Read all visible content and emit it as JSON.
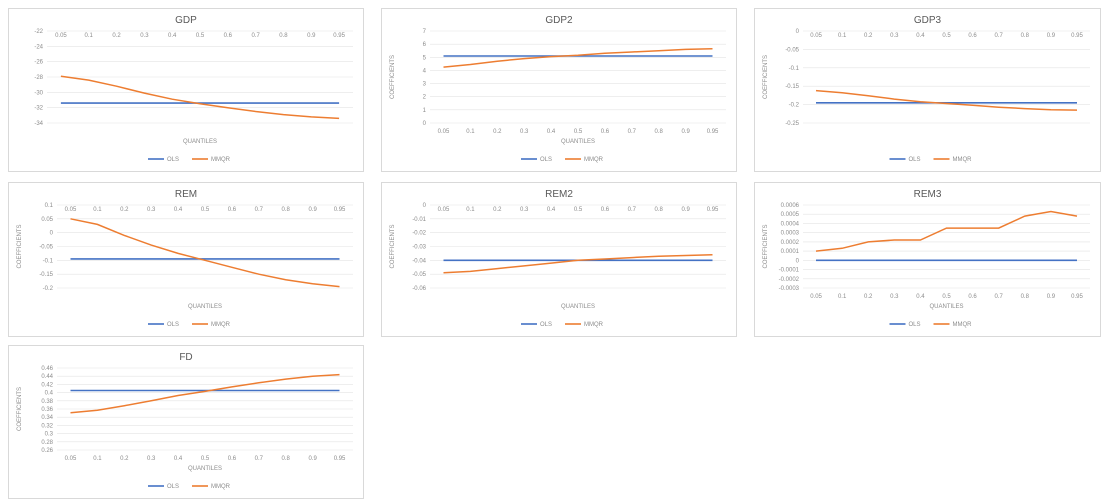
{
  "colors": {
    "ols": "#4472c4",
    "mmqr": "#ed7d31",
    "grid": "#e3e3e3"
  },
  "chart_data": [
    {
      "type": "line",
      "title": "GDP",
      "xlabel": "QUANTILES",
      "ylabel": "",
      "categories": [
        "0.05",
        "0.1",
        "0.2",
        "0.3",
        "0.4",
        "0.5",
        "0.6",
        "0.7",
        "0.8",
        "0.9",
        "0.95"
      ],
      "x_axis_position": "top",
      "y_ticks": [
        "-22",
        "-24",
        "-26",
        "-28",
        "-30",
        "-32",
        "-34"
      ],
      "ylim": [
        -34,
        -22
      ],
      "legend": [
        "OLS",
        "MMQR"
      ],
      "legend_position": "bottom",
      "series": [
        {
          "name": "OLS",
          "values": [
            -31.4,
            -31.4,
            -31.4,
            -31.4,
            -31.4,
            -31.4,
            -31.4,
            -31.4,
            -31.4,
            -31.4,
            -31.4
          ]
        },
        {
          "name": "MMQR",
          "values": [
            -27.9,
            -28.4,
            -29.2,
            -30.1,
            -30.9,
            -31.5,
            -32.0,
            -32.5,
            -32.9,
            -33.2,
            -33.4
          ]
        }
      ]
    },
    {
      "type": "line",
      "title": "GDP2",
      "xlabel": "QUANTILES",
      "ylabel": "COEFFICIENTS",
      "categories": [
        "0.05",
        "0.1",
        "0.2",
        "0.3",
        "0.4",
        "0.5",
        "0.6",
        "0.7",
        "0.8",
        "0.9",
        "0.95"
      ],
      "x_axis_position": "bottom",
      "y_ticks": [
        "7",
        "6",
        "5",
        "4",
        "3",
        "2",
        "1",
        "0"
      ],
      "ylim": [
        0,
        7
      ],
      "legend": [
        "OLS",
        "MMQR"
      ],
      "legend_position": "bottom",
      "series": [
        {
          "name": "OLS",
          "values": [
            5.1,
            5.1,
            5.1,
            5.1,
            5.1,
            5.1,
            5.1,
            5.1,
            5.1,
            5.1,
            5.1
          ]
        },
        {
          "name": "MMQR",
          "values": [
            4.25,
            4.45,
            4.7,
            4.9,
            5.05,
            5.15,
            5.3,
            5.4,
            5.5,
            5.6,
            5.65
          ]
        }
      ]
    },
    {
      "type": "line",
      "title": "GDP3",
      "xlabel": "",
      "ylabel": "COEFFICIENTS",
      "categories": [
        "0.05",
        "0.1",
        "0.2",
        "0.3",
        "0.4",
        "0.5",
        "0.6",
        "0.7",
        "0.8",
        "0.9",
        "0.95"
      ],
      "x_axis_position": "top",
      "y_ticks": [
        "0",
        "-0.05",
        "-0.1",
        "-0.15",
        "-0.2",
        "-0.25"
      ],
      "ylim": [
        -0.25,
        0
      ],
      "legend": [
        "OLS",
        "MMQR"
      ],
      "legend_position": "bottom",
      "series": [
        {
          "name": "OLS",
          "values": [
            -0.195,
            -0.195,
            -0.195,
            -0.195,
            -0.195,
            -0.195,
            -0.195,
            -0.195,
            -0.195,
            -0.195,
            -0.195
          ]
        },
        {
          "name": "MMQR",
          "values": [
            -0.162,
            -0.168,
            -0.176,
            -0.185,
            -0.192,
            -0.197,
            -0.202,
            -0.207,
            -0.211,
            -0.214,
            -0.215
          ]
        }
      ]
    },
    {
      "type": "line",
      "title": "REM",
      "xlabel": "QUANTILES",
      "ylabel": "COEFFICIENTS",
      "categories": [
        "0.05",
        "0.1",
        "0.2",
        "0.3",
        "0.4",
        "0.5",
        "0.6",
        "0.7",
        "0.8",
        "0.9",
        "0.95"
      ],
      "x_axis_position": "top",
      "y_ticks": [
        "0.1",
        "0.05",
        "0",
        "-0.05",
        "-0.1",
        "-0.15",
        "-0.2"
      ],
      "ylim": [
        -0.2,
        0.1
      ],
      "legend": [
        "OLS",
        "MMQR"
      ],
      "legend_position": "bottom",
      "series": [
        {
          "name": "OLS",
          "values": [
            -0.095,
            -0.095,
            -0.095,
            -0.095,
            -0.095,
            -0.095,
            -0.095,
            -0.095,
            -0.095,
            -0.095,
            -0.095
          ]
        },
        {
          "name": "MMQR",
          "values": [
            0.05,
            0.03,
            -0.01,
            -0.045,
            -0.075,
            -0.1,
            -0.125,
            -0.15,
            -0.17,
            -0.185,
            -0.195
          ]
        }
      ]
    },
    {
      "type": "line",
      "title": "REM2",
      "xlabel": "QUANTILES",
      "ylabel": "COEFFICIENTS",
      "categories": [
        "0.05",
        "0.1",
        "0.2",
        "0.3",
        "0.4",
        "0.5",
        "0.6",
        "0.7",
        "0.8",
        "0.9",
        "0.95"
      ],
      "x_axis_position": "top",
      "y_ticks": [
        "0",
        "-0.01",
        "-0.02",
        "-0.03",
        "-0.04",
        "-0.05",
        "-0.06"
      ],
      "ylim": [
        -0.06,
        0
      ],
      "legend": [
        "OLS",
        "MMQR"
      ],
      "legend_position": "bottom",
      "series": [
        {
          "name": "OLS",
          "values": [
            -0.04,
            -0.04,
            -0.04,
            -0.04,
            -0.04,
            -0.04,
            -0.04,
            -0.04,
            -0.04,
            -0.04,
            -0.04
          ]
        },
        {
          "name": "MMQR",
          "values": [
            -0.049,
            -0.048,
            -0.046,
            -0.044,
            -0.042,
            -0.04,
            -0.039,
            -0.038,
            -0.037,
            -0.0365,
            -0.036
          ]
        }
      ]
    },
    {
      "type": "line",
      "title": "REM3",
      "xlabel": "QUANTILES",
      "ylabel": "COEFFICIENTS",
      "categories": [
        "0.05",
        "0.1",
        "0.2",
        "0.3",
        "0.4",
        "0.5",
        "0.6",
        "0.7",
        "0.8",
        "0.9",
        "0.95"
      ],
      "x_axis_position": "bottom",
      "y_ticks": [
        "0.0006",
        "0.0005",
        "0.0004",
        "0.0003",
        "0.0002",
        "0.0001",
        "0",
        "-0.0001",
        "-0.0002",
        "-0.0003"
      ],
      "ylim": [
        -0.0003,
        0.0006
      ],
      "legend": [
        "OLS",
        "MMQR"
      ],
      "legend_position": "bottom",
      "series": [
        {
          "name": "OLS",
          "values": [
            0,
            0,
            0,
            0,
            0,
            0,
            0,
            0,
            0,
            0,
            0
          ]
        },
        {
          "name": "MMQR",
          "values": [
            0.0001,
            0.00013,
            0.0002,
            0.00022,
            0.00022,
            0.00035,
            0.00035,
            0.00035,
            0.00048,
            0.00053,
            0.00048
          ]
        }
      ]
    },
    {
      "type": "line",
      "title": "FD",
      "xlabel": "QUANTILES",
      "ylabel": "COEFFICIENTS",
      "categories": [
        "0.05",
        "0.1",
        "0.2",
        "0.3",
        "0.4",
        "0.5",
        "0.6",
        "0.7",
        "0.8",
        "0.9",
        "0.95"
      ],
      "x_axis_position": "bottom",
      "y_ticks": [
        "0.46",
        "0.44",
        "0.42",
        "0.4",
        "0.38",
        "0.36",
        "0.34",
        "0.32",
        "0.3",
        "0.28",
        "0.26"
      ],
      "ylim": [
        0.26,
        0.46
      ],
      "legend": [
        "OLS",
        "MMQR"
      ],
      "legend_position": "bottom",
      "series": [
        {
          "name": "OLS",
          "values": [
            0.405,
            0.405,
            0.405,
            0.405,
            0.405,
            0.405,
            0.405,
            0.405,
            0.405,
            0.405,
            0.405
          ]
        },
        {
          "name": "MMQR",
          "values": [
            0.351,
            0.357,
            0.368,
            0.38,
            0.393,
            0.403,
            0.414,
            0.424,
            0.433,
            0.44,
            0.444
          ]
        }
      ]
    }
  ]
}
